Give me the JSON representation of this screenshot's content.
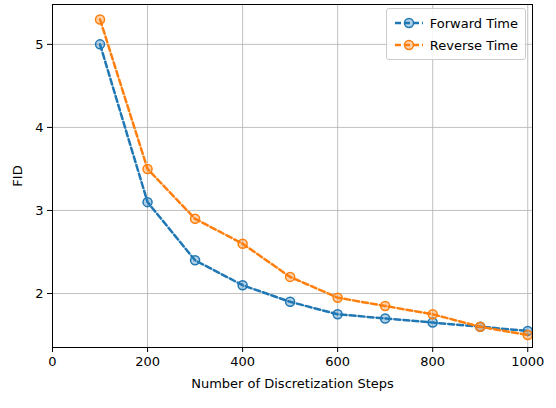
{
  "chart_data": {
    "type": "line",
    "x_label": "Number of Discretization Steps",
    "y_label": "FID",
    "x": [
      100,
      200,
      300,
      400,
      500,
      600,
      700,
      800,
      900,
      1000
    ],
    "series": [
      {
        "name": "Forward Time",
        "color": "#1f77b4",
        "marker": "circle",
        "line_style": "dashed",
        "values": [
          5.0,
          3.1,
          2.4,
          2.1,
          1.9,
          1.75,
          1.7,
          1.65,
          1.6,
          1.55
        ]
      },
      {
        "name": "Reverse Time",
        "color": "#ff7f0e",
        "marker": "circle",
        "line_style": "dashed",
        "values": [
          5.3,
          3.5,
          2.9,
          2.6,
          2.2,
          1.95,
          1.85,
          1.75,
          1.6,
          1.5
        ]
      }
    ],
    "xlim": [
      0,
      1010
    ],
    "ylim": [
      1.35,
      5.48
    ],
    "xticks": [
      0,
      200,
      400,
      600,
      800,
      1000
    ],
    "yticks": [
      2,
      3,
      4,
      5
    ],
    "grid": true,
    "legend": "upper right"
  }
}
